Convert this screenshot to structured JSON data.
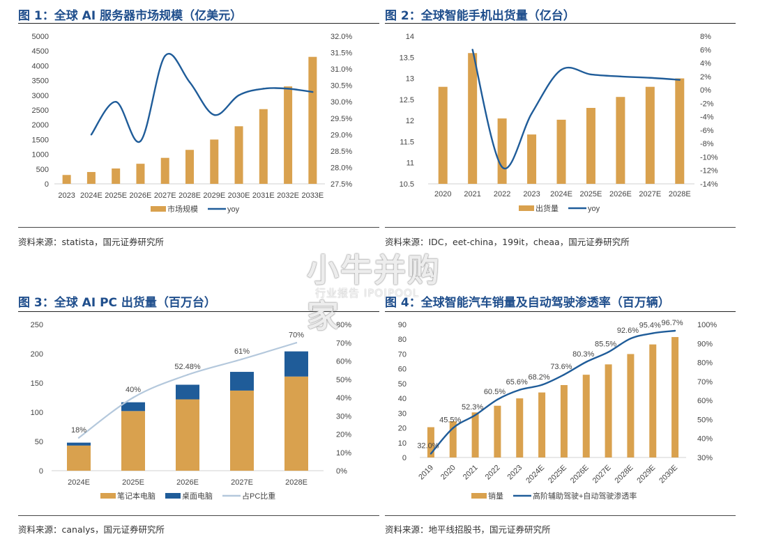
{
  "panels": [
    {
      "title": "图 1：全球 AI 服务器市场规模（亿美元）",
      "source": "资料来源：statista，国元证券研究所",
      "chart_data": {
        "type": "bar",
        "categories": [
          "2023",
          "2024E",
          "2025E",
          "2026E",
          "2027E",
          "2028E",
          "2029E",
          "2030E",
          "2031E",
          "2032E",
          "2033E"
        ],
        "series": [
          {
            "name": "市场规模",
            "axis": "left",
            "type": "bar",
            "color": "#d9a14e",
            "values": [
              300,
              400,
              520,
              680,
              880,
              1150,
              1500,
              1950,
              2530,
              3300,
              4300
            ]
          },
          {
            "name": "yoy",
            "axis": "right",
            "type": "line",
            "color": "#1f5c99",
            "values": [
              null,
              29.0,
              30.0,
              28.8,
              31.4,
              30.6,
              29.6,
              30.2,
              30.4,
              30.4,
              30.3
            ]
          }
        ],
        "left_axis": {
          "min": 0,
          "max": 5000,
          "step": 500,
          "ticks": [
            "0",
            "500",
            "1000",
            "1500",
            "2000",
            "2500",
            "3000",
            "3500",
            "4000",
            "4500",
            "5000"
          ]
        },
        "right_axis": {
          "min": 27.5,
          "max": 32.0,
          "step": 0.5,
          "ticks": [
            "27.5%",
            "28.0%",
            "28.5%",
            "29.0%",
            "29.5%",
            "30.0%",
            "30.5%",
            "31.0%",
            "31.5%",
            "32.0%"
          ]
        },
        "legend": [
          "市场规模",
          "yoy"
        ],
        "grid": false
      }
    },
    {
      "title": "图 2：全球智能手机出货量（亿台）",
      "source": "资料来源：IDC，eet-china，199it，cheaa，国元证券研究所",
      "chart_data": {
        "type": "bar",
        "categories": [
          "2020",
          "2021",
          "2022",
          "2023",
          "2024E",
          "2025E",
          "2026E",
          "2027E",
          "2028E"
        ],
        "series": [
          {
            "name": "出货量",
            "axis": "left",
            "type": "bar",
            "color": "#d9a14e",
            "values": [
              12.8,
              13.6,
              12.05,
              11.67,
              12.02,
              12.3,
              12.56,
              12.8,
              13.0
            ]
          },
          {
            "name": "yoy",
            "axis": "right",
            "type": "line",
            "color": "#1f5c99",
            "values": [
              null,
              6.0,
              -11.5,
              -3.5,
              3.0,
              2.3,
              2.0,
              1.8,
              1.5
            ]
          }
        ],
        "left_axis": {
          "min": 10.5,
          "max": 14,
          "step": 0.5,
          "ticks": [
            "10.5",
            "11",
            "11.5",
            "12",
            "12.5",
            "13",
            "13.5",
            "14"
          ]
        },
        "right_axis": {
          "min": -14,
          "max": 8,
          "step": 2,
          "ticks": [
            "-14%",
            "-12%",
            "-10%",
            "-8%",
            "-6%",
            "-4%",
            "-2%",
            "0%",
            "2%",
            "4%",
            "6%",
            "8%"
          ]
        },
        "legend": [
          "出货量",
          "yoy"
        ],
        "grid": false
      }
    },
    {
      "title": "图 3：全球 AI PC 出货量（百万台）",
      "source": "资料来源：canalys，国元证券研究所",
      "chart_data": {
        "type": "bar",
        "stacked": true,
        "categories": [
          "2024E",
          "2025E",
          "2026E",
          "2027E",
          "2028E"
        ],
        "series": [
          {
            "name": "笔记本电脑",
            "axis": "left",
            "type": "bar",
            "color": "#d9a14e",
            "values": [
              43,
              102,
              122,
              137,
              161
            ]
          },
          {
            "name": "桌面电脑",
            "axis": "left",
            "type": "bar",
            "color": "#1f5c99",
            "values": [
              5,
              15,
              25,
              32,
              43
            ]
          },
          {
            "name": "占PC比重",
            "axis": "right",
            "type": "line",
            "color": "#b4c8dc",
            "values": [
              18,
              40,
              52.48,
              61,
              70
            ],
            "labels": [
              "18%",
              "40%",
              "52.48%",
              "61%",
              "70%"
            ]
          }
        ],
        "left_axis": {
          "min": 0,
          "max": 250,
          "step": 50,
          "ticks": [
            "0",
            "50",
            "100",
            "150",
            "200",
            "250"
          ]
        },
        "right_axis": {
          "min": 0,
          "max": 80,
          "step": 10,
          "ticks": [
            "0%",
            "10%",
            "20%",
            "30%",
            "40%",
            "50%",
            "60%",
            "70%",
            "80%"
          ]
        },
        "legend": [
          "笔记本电脑",
          "桌面电脑",
          "占PC比重"
        ],
        "grid": false
      }
    },
    {
      "title": "图 4：全球智能汽车销量及自动驾驶渗透率（百万辆）",
      "source": "资料来源：地平线招股书，国元证券研究所",
      "chart_data": {
        "type": "bar",
        "categories": [
          "2019",
          "2020",
          "2021",
          "2022",
          "2023",
          "2024E",
          "2025E",
          "2026E",
          "2027E",
          "2028E",
          "2029E",
          "2030E"
        ],
        "x_label_rotation": -45,
        "series": [
          {
            "name": "销量",
            "axis": "left",
            "type": "bar",
            "color": "#d9a14e",
            "values": [
              20.5,
              24.5,
              30.5,
              35,
              40,
              44,
              49,
              56,
              63,
              70,
              76.5,
              81.5
            ]
          },
          {
            "name": "高阶辅助驾驶+自动驾驶渗透率",
            "axis": "right",
            "type": "line",
            "color": "#1f5c99",
            "values": [
              32.0,
              45.5,
              52.3,
              60.5,
              65.6,
              68.2,
              73.6,
              80.3,
              85.5,
              92.6,
              95.4,
              96.7
            ],
            "labels": [
              "32.0%",
              "45.5%",
              "52.3%",
              "60.5%",
              "65.6%",
              "68.2%",
              "73.6%",
              "80.3%",
              "85.5%",
              "92.6%",
              "95.4%",
              "96.7%"
            ]
          }
        ],
        "left_axis": {
          "min": 0,
          "max": 90,
          "step": 10,
          "ticks": [
            "0",
            "10",
            "20",
            "30",
            "40",
            "50",
            "60",
            "70",
            "80",
            "90"
          ]
        },
        "right_axis": {
          "min": 30,
          "max": 100,
          "step": 10,
          "ticks": [
            "30%",
            "40%",
            "50%",
            "60%",
            "70%",
            "80%",
            "90%",
            "100%"
          ]
        },
        "legend": [
          "销量",
          "高阶辅助驾驶+自动驾驶渗透率"
        ],
        "grid": false
      }
    }
  ],
  "watermark": {
    "main": "小牛并购家",
    "sub": "行业报告 IPO|POOL"
  }
}
